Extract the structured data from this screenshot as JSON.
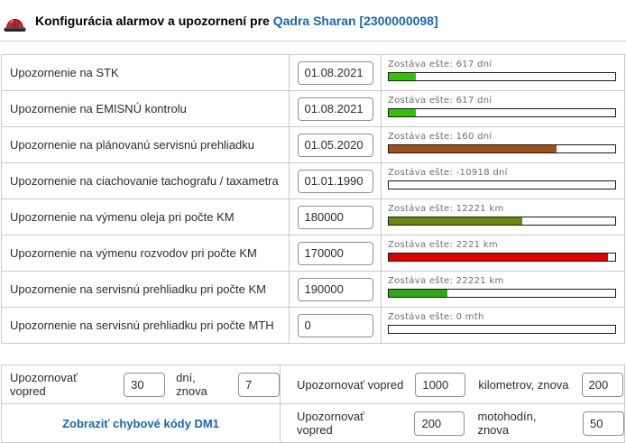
{
  "header": {
    "icon": "siren-icon",
    "title_prefix": "Konfigurácia alarmov a upozornení pre",
    "vehicle_name": "Qadra Sharan",
    "vehicle_id": "[2300000098]"
  },
  "colors": {
    "link_blue": "#1467b8",
    "bar_green_bright": "#2fc600",
    "bar_brown": "#a34d18",
    "bar_olive": "#67880b",
    "bar_red": "#e00000",
    "bar_green_mid": "#2ea616",
    "table_border": "#c9c9c9"
  },
  "alarm_rows": [
    {
      "label": "Upozornenie na STK",
      "value": "01.08.2021",
      "remaining": "Zostáva ešte: 617 dní",
      "fill_pct": 12,
      "fill_color": "#2fc600"
    },
    {
      "label": "Upozornenie na EMISNÚ kontrolu",
      "value": "01.08.2021",
      "remaining": "Zostáva ešte: 617 dní",
      "fill_pct": 12,
      "fill_color": "#2fc600"
    },
    {
      "label": "Upozornenie na plánovanú servisnú prehliadku",
      "value": "01.05.2020",
      "remaining": "Zostáva ešte: 160 dní",
      "fill_pct": 74,
      "fill_color": "#a34d18"
    },
    {
      "label": "Upozornenie na ciachovanie tachografu / taxametra",
      "value": "01.01.1990",
      "remaining": "Zostáva ešte: -10918 dní",
      "fill_pct": 0,
      "fill_color": null
    },
    {
      "label": "Upozornenie na výmenu oleja pri počte KM",
      "value": "180000",
      "remaining": "Zostáva ešte: 12221 km",
      "fill_pct": 59,
      "fill_color": "#67880b"
    },
    {
      "label": "Upozornenie na výmenu rozvodov pri počte KM",
      "value": "170000",
      "remaining": "Zostáva ešte: 2221 km",
      "fill_pct": 97,
      "fill_color": "#e00000"
    },
    {
      "label": "Upozornenie na servisnú prehliadku pri počte KM",
      "value": "190000",
      "remaining": "Zostáva ešte: 22221 km",
      "fill_pct": 26,
      "fill_color": "#2ea616"
    },
    {
      "label": "Upozornenie na servisnú prehliadku pri počte MTH",
      "value": "0",
      "remaining": "Zostáva ešte: 0 mth",
      "fill_pct": 0,
      "fill_color": null
    }
  ],
  "advance": {
    "days": {
      "label": "Upozornovať vopred",
      "value": "30",
      "unit": "dní, znova",
      "again": "7"
    },
    "km": {
      "label": "Upozornovať vopred",
      "value": "1000",
      "unit": "kilometrov, znova",
      "again": "200"
    },
    "mth": {
      "label": "Upozornovať vopred",
      "value": "200",
      "unit": "motohodín, znova",
      "again": "50"
    },
    "dm1_link": "Zobraziť chybové kódy DM1"
  }
}
